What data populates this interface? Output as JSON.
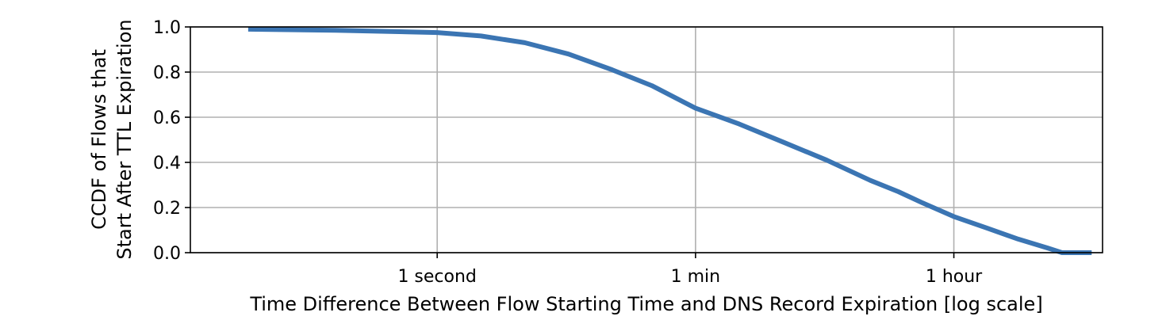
{
  "chart_data": {
    "type": "line",
    "xlabel": "Time Difference Between Flow Starting Time and DNS Record Expiration [log scale]",
    "ylabel_lines": [
      "CCDF of Flows that",
      "Start After TTL Expiration"
    ],
    "x_scale": "log",
    "x_unit": "seconds",
    "xlim_seconds": [
      0.02,
      38000
    ],
    "ylim": [
      0,
      1.0
    ],
    "x_ticks": [
      {
        "value": 1,
        "label": "1 second"
      },
      {
        "value": 60,
        "label": "1 min"
      },
      {
        "value": 3600,
        "label": "1 hour"
      }
    ],
    "y_ticks": [
      {
        "value": 0.0,
        "label": "0.0"
      },
      {
        "value": 0.2,
        "label": "0.2"
      },
      {
        "value": 0.4,
        "label": "0.4"
      },
      {
        "value": 0.6,
        "label": "0.6"
      },
      {
        "value": 0.8,
        "label": "0.8"
      },
      {
        "value": 1.0,
        "label": "1.0"
      }
    ],
    "grid": true,
    "legend": "none",
    "series": [
      {
        "color": "#3b75b3",
        "points": [
          [
            0.05,
            0.99
          ],
          [
            0.2,
            0.985
          ],
          [
            1,
            0.975
          ],
          [
            2,
            0.96
          ],
          [
            4,
            0.93
          ],
          [
            8,
            0.88
          ],
          [
            16,
            0.81
          ],
          [
            30,
            0.74
          ],
          [
            60,
            0.64
          ],
          [
            120,
            0.57
          ],
          [
            240,
            0.49
          ],
          [
            480,
            0.41
          ],
          [
            960,
            0.32
          ],
          [
            1500,
            0.27
          ],
          [
            2200,
            0.22
          ],
          [
            3600,
            0.16
          ],
          [
            6000,
            0.11
          ],
          [
            10000,
            0.06
          ],
          [
            16000,
            0.02
          ],
          [
            20000,
            0.0
          ],
          [
            32000,
            0.0
          ]
        ]
      }
    ]
  }
}
